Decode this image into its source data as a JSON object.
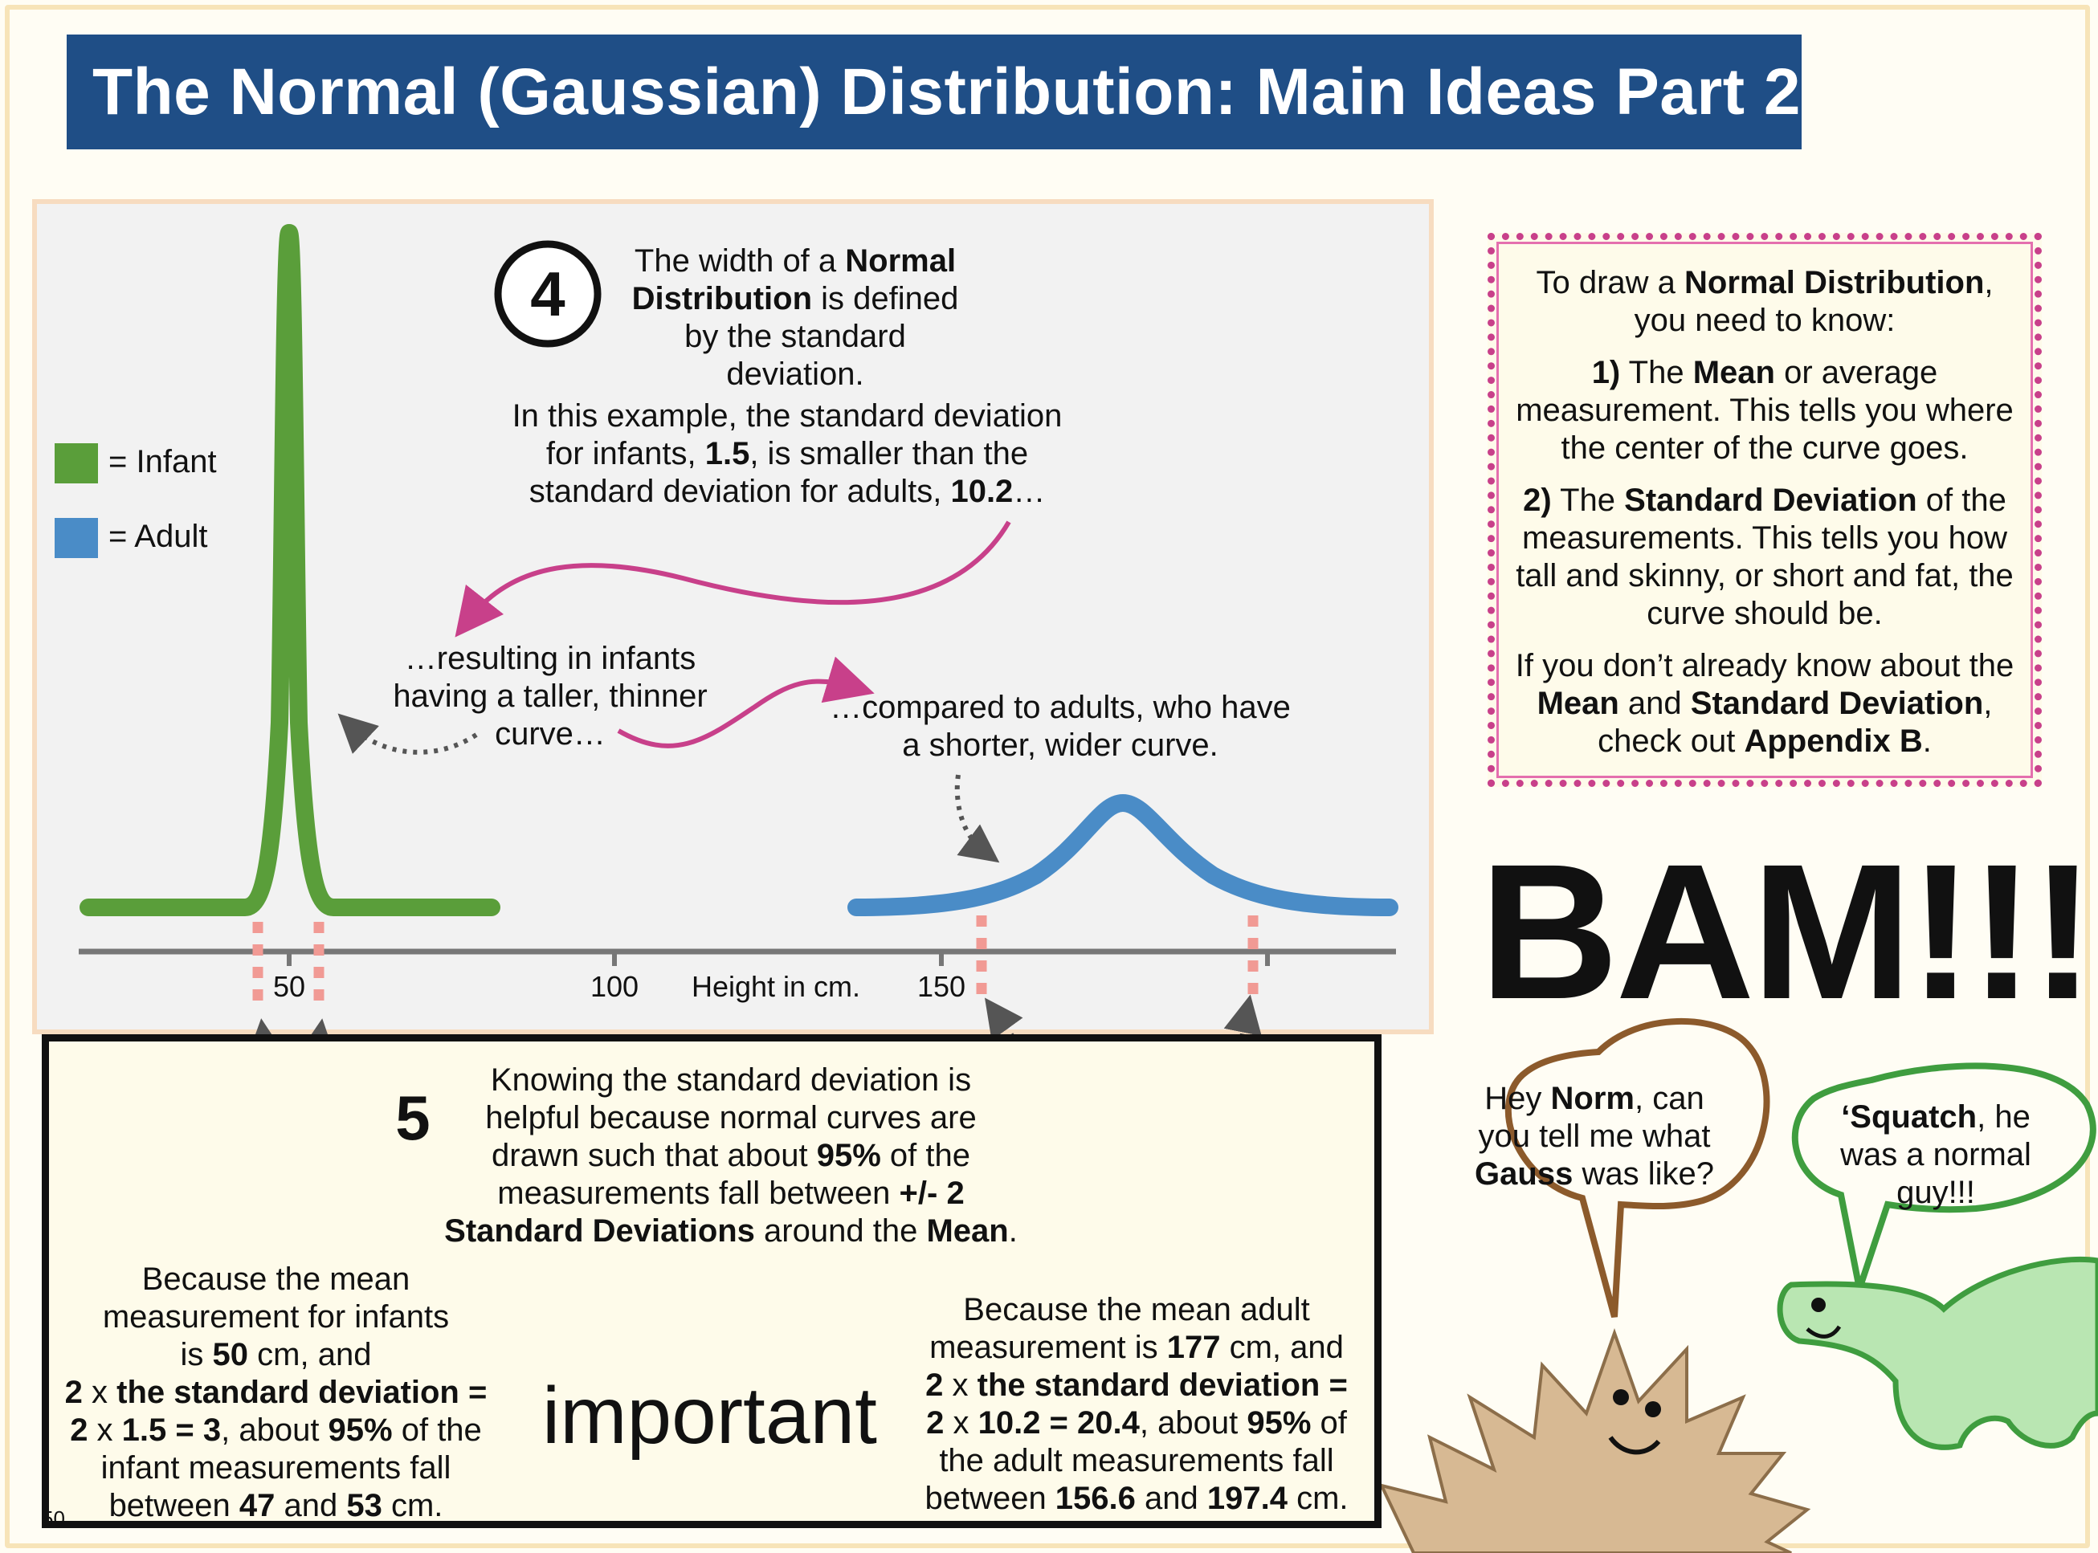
{
  "title": "The Normal (Gaussian) Distribution: Main Ideas Part 2",
  "legend": {
    "infant": "= Infant",
    "adult": "= Adult",
    "infant_color": "#5a9e3a",
    "adult_color": "#4a8cc7"
  },
  "axis": {
    "label": "Height in cm.",
    "ticks": [
      "50",
      "100",
      "150"
    ]
  },
  "step4": {
    "number": "4",
    "line1_a": "The width of a ",
    "line1_b": "Normal",
    "line2_a": "Distribution",
    "line2_b": " is defined",
    "line3": "by the standard",
    "line4": "deviation.",
    "line5": "In this example, the standard deviation",
    "line6_a": "for infants, ",
    "line6_b": "1.5",
    "line6_c": ", is smaller than the",
    "line7_a": "standard deviation for adults, ",
    "line7_b": "10.2",
    "line7_c": "…"
  },
  "resulting": {
    "line1": "…resulting in infants",
    "line2": "having a taller, thinner",
    "line3": "curve…"
  },
  "compared": {
    "line1": "…compared to adults, who have",
    "line2": "a shorter, wider curve."
  },
  "side_box": {
    "p1_a": "To draw a ",
    "p1_b": "Normal Distribution",
    "p1_c": ",",
    "p1_d": "you need to know:",
    "p2_a": "1)",
    "p2_b": " The ",
    "p2_c": "Mean",
    "p2_d": " or average measurement. This tells you where the center of the curve goes.",
    "p3_a": "2)",
    "p3_b": " The ",
    "p3_c": "Standard Deviation",
    "p3_d": " of the measurements. This tells you how tall and skinny, or short and fat, the curve should be.",
    "p4_a": "If you don’t already know about the ",
    "p4_b": "Mean",
    "p4_c": " and ",
    "p4_d": "Standard Deviation",
    "p4_e": ", check out ",
    "p4_f": "Appendix B",
    "p4_g": "."
  },
  "bam": "BAM!!!",
  "step5": {
    "number": "5",
    "line1": "Knowing the standard deviation is",
    "line2": "helpful because normal curves are",
    "line3_a": "drawn such that about ",
    "line3_b": "95%",
    "line3_c": " of the",
    "line4_a": "measurements fall between ",
    "line4_b": "+/- 2",
    "line5_a": "Standard Deviations",
    "line5_b": " around the ",
    "line5_c": "Mean",
    "line5_d": "."
  },
  "infant_note": {
    "line1": "Because the mean",
    "line2": "measurement for infants",
    "line3_a": "is ",
    "line3_b": "50",
    "line3_c": " cm, and",
    "line4_a": "2",
    "line4_b": " x ",
    "line4_c": "the standard deviation =",
    "line5_a": "2",
    "line5_b": " x ",
    "line5_c": "1.5 = 3",
    "line5_d": ", about ",
    "line5_e": "95%",
    "line5_f": " of the",
    "line6": "infant measurements fall",
    "line7_a": "between ",
    "line7_b": "47",
    "line7_c": " and ",
    "line7_d": "53",
    "line7_e": " cm."
  },
  "adult_note": {
    "line1": "Because the mean adult",
    "line2_a": "measurement is ",
    "line2_b": "177",
    "line2_c": " cm, and",
    "line3_a": "2",
    "line3_b": " x ",
    "line3_c": "the standard deviation =",
    "line4_a": "2",
    "line4_b": " x ",
    "line4_c": "10.2 = 20.4",
    "line4_d": ", about ",
    "line4_e": "95%",
    "line4_f": " of",
    "line5": "the adult measurements fall",
    "line6_a": "between ",
    "line6_b": "156.6",
    "line6_c": " and ",
    "line6_d": "197.4",
    "line6_e": " cm."
  },
  "important": "important",
  "norm_bubble": {
    "a": "Hey ",
    "b": "Norm",
    "c": ", can you tell me what ",
    "d": "Gauss",
    "e": " was like?"
  },
  "squatch_bubble": {
    "a": "‘Squatch",
    "b": ", he was a normal guy!!!"
  },
  "page_number": "50"
}
